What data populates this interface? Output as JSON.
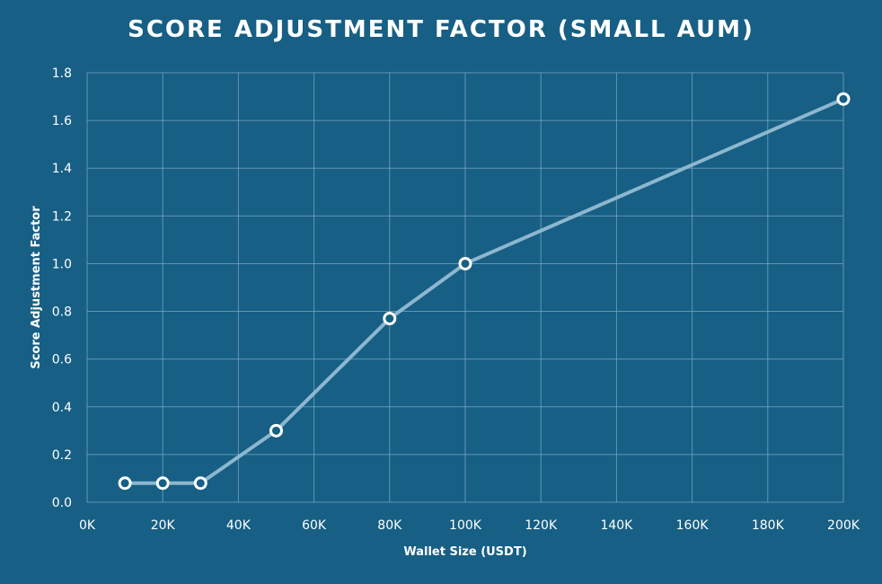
{
  "chart_data": {
    "type": "line",
    "title": "SCORE ADJUSTMENT FACTOR (SMALL AUM)",
    "xlabel": "Wallet Size (USDT)",
    "ylabel": "Score Adjustment Factor",
    "xlim": [
      0,
      200000
    ],
    "ylim": [
      0,
      1.8
    ],
    "x_ticks": [
      {
        "value": 0,
        "label": "0K"
      },
      {
        "value": 20000,
        "label": "20K"
      },
      {
        "value": 40000,
        "label": "40K"
      },
      {
        "value": 60000,
        "label": "60K"
      },
      {
        "value": 80000,
        "label": "80K"
      },
      {
        "value": 100000,
        "label": "100K"
      },
      {
        "value": 120000,
        "label": "120K"
      },
      {
        "value": 140000,
        "label": "140K"
      },
      {
        "value": 160000,
        "label": "160K"
      },
      {
        "value": 180000,
        "label": "180K"
      },
      {
        "value": 200000,
        "label": "200K"
      }
    ],
    "y_ticks": [
      {
        "value": 0,
        "label": "0.0"
      },
      {
        "value": 0.2,
        "label": "0.2"
      },
      {
        "value": 0.4,
        "label": "0.4"
      },
      {
        "value": 0.6,
        "label": "0.6"
      },
      {
        "value": 0.8,
        "label": "0.8"
      },
      {
        "value": 1.0,
        "label": "1.0"
      },
      {
        "value": 1.2,
        "label": "1.2"
      },
      {
        "value": 1.4,
        "label": "1.4"
      },
      {
        "value": 1.6,
        "label": "1.6"
      },
      {
        "value": 1.8,
        "label": "1.8"
      }
    ],
    "grid": true,
    "series": [
      {
        "x": [
          10000,
          20000,
          30000,
          50000,
          80000,
          100000,
          200000
        ],
        "y": [
          0.08,
          0.08,
          0.08,
          0.3,
          0.77,
          1.0,
          1.69
        ]
      }
    ],
    "colors": {
      "background": "#175f84",
      "grid": "#7aa9c4",
      "line": "#8db7cf",
      "marker_stroke": "#ffffff",
      "text": "#ffffff"
    }
  }
}
